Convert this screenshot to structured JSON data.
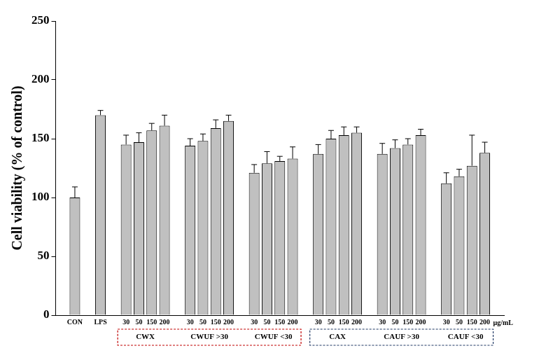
{
  "chart_data": {
    "type": "bar",
    "ylabel": "Cell viability (% of control)",
    "xlabel": "μg/mL",
    "ylim": [
      0,
      250
    ],
    "yticks": [
      0,
      50,
      100,
      150,
      200,
      250
    ],
    "grid": false,
    "color": "#c0c0c0",
    "categories": [
      "CON",
      "LPS"
    ],
    "values": [
      100,
      170
    ],
    "errors": [
      9,
      4
    ],
    "groups": [
      {
        "name": "CWX",
        "categories": [
          "30",
          "50",
          "150",
          "200"
        ],
        "values": [
          145,
          147,
          157,
          161
        ],
        "errors": [
          8,
          8,
          6,
          9
        ]
      },
      {
        "name": "CWUF >30",
        "categories": [
          "30",
          "50",
          "150",
          "200"
        ],
        "values": [
          144,
          148,
          159,
          165
        ],
        "errors": [
          6,
          6,
          7,
          5
        ]
      },
      {
        "name": "CWUF <30",
        "categories": [
          "30",
          "50",
          "150",
          "200"
        ],
        "values": [
          121,
          129,
          131,
          133
        ],
        "errors": [
          7,
          10,
          4,
          10
        ]
      },
      {
        "name": "CAX",
        "categories": [
          "30",
          "50",
          "150",
          "200"
        ],
        "values": [
          137,
          150,
          153,
          155
        ],
        "errors": [
          8,
          7,
          7,
          5
        ]
      },
      {
        "name": "CAUF >30",
        "categories": [
          "30",
          "50",
          "150",
          "200"
        ],
        "values": [
          137,
          142,
          145,
          153
        ],
        "errors": [
          9,
          7,
          5,
          5
        ]
      },
      {
        "name": "CAUF <30",
        "categories": [
          "30",
          "50",
          "150",
          "200"
        ],
        "values": [
          112,
          118,
          127,
          138
        ],
        "errors": [
          9,
          6,
          26,
          9
        ]
      }
    ]
  }
}
